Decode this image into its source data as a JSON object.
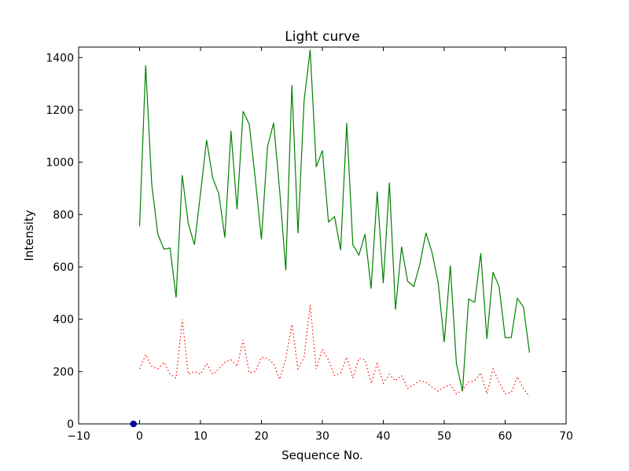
{
  "chart_data": {
    "type": "line",
    "title": "Light curve",
    "xlabel": "Sequence No.",
    "ylabel": "Intensity",
    "xlim": [
      -10,
      70
    ],
    "ylim": [
      0,
      1440
    ],
    "xticks": [
      -10,
      0,
      10,
      20,
      30,
      40,
      50,
      60,
      70
    ],
    "xtick_labels": [
      "−10",
      "0",
      "10",
      "20",
      "30",
      "40",
      "50",
      "60",
      "70"
    ],
    "yticks": [
      0,
      200,
      400,
      600,
      800,
      1000,
      1200,
      1400
    ],
    "ytick_labels": [
      "0",
      "200",
      "400",
      "600",
      "800",
      "1000",
      "1200",
      "1400"
    ],
    "grid": false,
    "colors": {
      "series1": "#008000",
      "series2": "#ff0000",
      "marker": "#0000ff"
    },
    "series": [
      {
        "style": "solid",
        "x": [
          0,
          1,
          2,
          3,
          4,
          5,
          6,
          7,
          8,
          9,
          10,
          11,
          12,
          13,
          14,
          15,
          16,
          17,
          18,
          19,
          20,
          21,
          22,
          23,
          24,
          25,
          26,
          27,
          28,
          29,
          30,
          31,
          32,
          33,
          34,
          35,
          36,
          37,
          38,
          39,
          40,
          41,
          42,
          43,
          44,
          45,
          46,
          47,
          48,
          49,
          50,
          51,
          52,
          53,
          54,
          55,
          56,
          57,
          58,
          59,
          60,
          61,
          62,
          63,
          64
        ],
        "y": [
          755,
          1370,
          915,
          725,
          668,
          672,
          483,
          950,
          765,
          685,
          880,
          1085,
          940,
          880,
          712,
          1120,
          820,
          1195,
          1145,
          935,
          705,
          1060,
          1150,
          890,
          587,
          1295,
          728,
          1235,
          1430,
          982,
          1045,
          772,
          792,
          665,
          1150,
          685,
          645,
          725,
          517,
          888,
          538,
          922,
          437,
          677,
          545,
          525,
          610,
          730,
          655,
          540,
          312,
          605,
          230,
          125,
          477,
          465,
          652,
          325,
          580,
          525,
          330,
          330,
          480,
          447,
          272
        ]
      },
      {
        "style": "dotted",
        "x": [
          0,
          1,
          2,
          3,
          4,
          5,
          6,
          7,
          8,
          9,
          10,
          11,
          12,
          13,
          14,
          15,
          16,
          17,
          18,
          19,
          20,
          21,
          22,
          23,
          24,
          25,
          26,
          27,
          28,
          29,
          30,
          31,
          32,
          33,
          34,
          35,
          36,
          37,
          38,
          39,
          40,
          41,
          42,
          43,
          44,
          45,
          46,
          47,
          48,
          49,
          50,
          51,
          52,
          53,
          54,
          55,
          56,
          57,
          58,
          59,
          60,
          61,
          62,
          63,
          64
        ],
        "y": [
          210,
          265,
          220,
          210,
          235,
          190,
          175,
          400,
          190,
          200,
          190,
          230,
          190,
          210,
          235,
          245,
          220,
          320,
          195,
          200,
          255,
          250,
          230,
          170,
          250,
          380,
          210,
          255,
          455,
          210,
          285,
          245,
          185,
          195,
          255,
          175,
          250,
          245,
          155,
          230,
          155,
          190,
          165,
          185,
          135,
          150,
          165,
          160,
          140,
          125,
          140,
          150,
          115,
          130,
          160,
          165,
          195,
          115,
          210,
          160,
          115,
          120,
          180,
          135,
          105
        ]
      },
      {
        "style": "marker",
        "x": [
          -1
        ],
        "y": [
          0
        ]
      }
    ]
  }
}
